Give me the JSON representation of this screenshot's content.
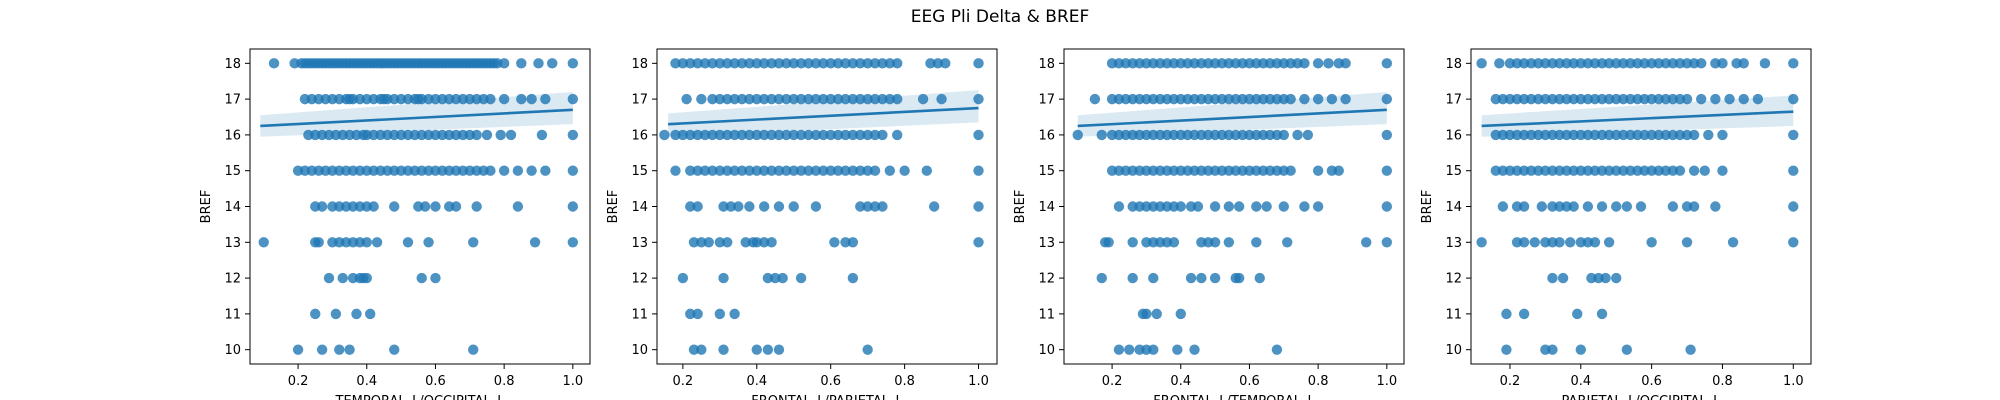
{
  "figure": {
    "title": "EEG Pli Delta & BREF"
  },
  "colors": {
    "point": "#1f77b4",
    "line": "#1f77b4",
    "ci": "#1f77b4"
  },
  "chart_data": [
    {
      "type": "scatter",
      "xlabel": "TEMPORAL_L/OCCIPITAL_L",
      "ylabel": "BREF",
      "xlim": [
        0.06,
        1.05
      ],
      "ylim": [
        9.6,
        18.4
      ],
      "xticks": [
        0.2,
        0.4,
        0.6,
        0.8,
        1.0
      ],
      "xtick_labels": [
        "0.2",
        "0.4",
        "0.6",
        "0.8",
        "1.0"
      ],
      "yticks": [
        10,
        11,
        12,
        13,
        14,
        15,
        16,
        17,
        18
      ],
      "ytick_labels": [
        "10",
        "11",
        "12",
        "13",
        "14",
        "15",
        "16",
        "17",
        "18"
      ],
      "regression": {
        "x": [
          0.09,
          1.0
        ],
        "y": [
          16.25,
          16.7
        ],
        "ci_lower": [
          15.95,
          16.3
        ],
        "ci_upper": [
          16.55,
          17.2
        ]
      },
      "points": {
        "18": [
          0.13,
          0.19,
          0.21,
          0.22,
          0.23,
          0.24,
          0.25,
          0.26,
          0.27,
          0.28,
          0.29,
          0.3,
          0.31,
          0.32,
          0.33,
          0.34,
          0.35,
          0.36,
          0.37,
          0.38,
          0.39,
          0.4,
          0.41,
          0.42,
          0.43,
          0.44,
          0.45,
          0.46,
          0.47,
          0.48,
          0.49,
          0.5,
          0.51,
          0.52,
          0.53,
          0.54,
          0.55,
          0.56,
          0.57,
          0.58,
          0.59,
          0.6,
          0.61,
          0.62,
          0.63,
          0.64,
          0.65,
          0.66,
          0.67,
          0.68,
          0.69,
          0.7,
          0.71,
          0.72,
          0.73,
          0.74,
          0.75,
          0.76,
          0.77,
          0.78,
          0.8,
          0.85,
          0.9,
          0.94,
          1.0
        ],
        "17": [
          0.22,
          0.24,
          0.26,
          0.28,
          0.3,
          0.32,
          0.34,
          0.35,
          0.36,
          0.38,
          0.4,
          0.42,
          0.44,
          0.45,
          0.46,
          0.48,
          0.5,
          0.52,
          0.54,
          0.55,
          0.56,
          0.58,
          0.6,
          0.62,
          0.64,
          0.66,
          0.68,
          0.7,
          0.72,
          0.74,
          0.76,
          0.8,
          0.85,
          0.88,
          0.92,
          1.0
        ],
        "16": [
          0.23,
          0.25,
          0.27,
          0.29,
          0.31,
          0.33,
          0.35,
          0.37,
          0.39,
          0.4,
          0.42,
          0.44,
          0.46,
          0.48,
          0.5,
          0.52,
          0.54,
          0.56,
          0.58,
          0.6,
          0.62,
          0.64,
          0.66,
          0.68,
          0.7,
          0.72,
          0.75,
          0.79,
          0.82,
          0.91,
          1.0
        ],
        "15": [
          0.2,
          0.22,
          0.24,
          0.26,
          0.28,
          0.3,
          0.32,
          0.34,
          0.36,
          0.38,
          0.4,
          0.42,
          0.44,
          0.46,
          0.48,
          0.5,
          0.52,
          0.54,
          0.56,
          0.58,
          0.6,
          0.62,
          0.64,
          0.66,
          0.68,
          0.7,
          0.72,
          0.74,
          0.76,
          0.8,
          0.84,
          0.88,
          0.92,
          1.0
        ],
        "14": [
          0.25,
          0.27,
          0.3,
          0.32,
          0.34,
          0.36,
          0.38,
          0.4,
          0.42,
          0.48,
          0.55,
          0.57,
          0.6,
          0.64,
          0.66,
          0.72,
          0.84,
          1.0
        ],
        "13": [
          0.1,
          0.25,
          0.26,
          0.3,
          0.32,
          0.34,
          0.36,
          0.38,
          0.4,
          0.43,
          0.52,
          0.58,
          0.71,
          0.89,
          1.0
        ],
        "12": [
          0.29,
          0.33,
          0.36,
          0.38,
          0.39,
          0.4,
          0.56,
          0.6
        ],
        "11": [
          0.25,
          0.31,
          0.37,
          0.41
        ],
        "10": [
          0.2,
          0.27,
          0.32,
          0.35,
          0.48,
          0.71
        ]
      }
    },
    {
      "type": "scatter",
      "xlabel": "FRONTAL_L/PARIETAL_L",
      "ylabel": "BREF",
      "xlim": [
        0.13,
        1.05
      ],
      "ylim": [
        9.6,
        18.4
      ],
      "xticks": [
        0.2,
        0.4,
        0.6,
        0.8,
        1.0
      ],
      "xtick_labels": [
        "0.2",
        "0.4",
        "0.6",
        "0.8",
        "1.0"
      ],
      "yticks": [
        10,
        11,
        12,
        13,
        14,
        15,
        16,
        17,
        18
      ],
      "ytick_labels": [
        "10",
        "11",
        "12",
        "13",
        "14",
        "15",
        "16",
        "17",
        "18"
      ],
      "regression": {
        "x": [
          0.16,
          1.0
        ],
        "y": [
          16.3,
          16.75
        ],
        "ci_lower": [
          15.95,
          16.35
        ],
        "ci_upper": [
          16.6,
          17.25
        ]
      },
      "points": {
        "18": [
          0.18,
          0.2,
          0.22,
          0.24,
          0.26,
          0.28,
          0.3,
          0.32,
          0.34,
          0.36,
          0.38,
          0.4,
          0.42,
          0.44,
          0.46,
          0.48,
          0.5,
          0.52,
          0.54,
          0.56,
          0.58,
          0.6,
          0.62,
          0.64,
          0.66,
          0.68,
          0.7,
          0.72,
          0.74,
          0.76,
          0.78,
          0.87,
          0.89,
          0.91,
          1.0
        ],
        "17": [
          0.21,
          0.25,
          0.28,
          0.3,
          0.32,
          0.34,
          0.36,
          0.38,
          0.4,
          0.42,
          0.44,
          0.46,
          0.48,
          0.5,
          0.52,
          0.54,
          0.56,
          0.58,
          0.6,
          0.62,
          0.64,
          0.66,
          0.68,
          0.7,
          0.72,
          0.74,
          0.76,
          0.78,
          0.85,
          0.9,
          1.0
        ],
        "16": [
          0.15,
          0.18,
          0.2,
          0.22,
          0.24,
          0.26,
          0.28,
          0.3,
          0.32,
          0.34,
          0.36,
          0.38,
          0.4,
          0.42,
          0.44,
          0.46,
          0.48,
          0.5,
          0.52,
          0.54,
          0.56,
          0.58,
          0.6,
          0.62,
          0.64,
          0.66,
          0.68,
          0.7,
          0.72,
          0.74,
          0.78,
          1.0
        ],
        "15": [
          0.18,
          0.22,
          0.24,
          0.26,
          0.28,
          0.3,
          0.32,
          0.34,
          0.36,
          0.38,
          0.4,
          0.42,
          0.44,
          0.46,
          0.48,
          0.5,
          0.52,
          0.54,
          0.56,
          0.58,
          0.6,
          0.62,
          0.64,
          0.66,
          0.68,
          0.7,
          0.72,
          0.76,
          0.8,
          0.86,
          1.0
        ],
        "14": [
          0.22,
          0.24,
          0.31,
          0.33,
          0.35,
          0.38,
          0.42,
          0.46,
          0.5,
          0.56,
          0.68,
          0.7,
          0.72,
          0.74,
          0.88,
          1.0
        ],
        "13": [
          0.23,
          0.25,
          0.27,
          0.3,
          0.32,
          0.37,
          0.39,
          0.4,
          0.42,
          0.44,
          0.61,
          0.64,
          0.66,
          1.0
        ],
        "12": [
          0.2,
          0.31,
          0.43,
          0.45,
          0.47,
          0.52,
          0.66
        ],
        "11": [
          0.22,
          0.24,
          0.3,
          0.34
        ],
        "10": [
          0.23,
          0.25,
          0.31,
          0.4,
          0.43,
          0.46,
          0.7
        ]
      }
    },
    {
      "type": "scatter",
      "xlabel": "FRONTAL_L/TEMPORAL_L",
      "ylabel": "BREF",
      "xlim": [
        0.06,
        1.05
      ],
      "ylim": [
        9.6,
        18.4
      ],
      "xticks": [
        0.2,
        0.4,
        0.6,
        0.8,
        1.0
      ],
      "xtick_labels": [
        "0.2",
        "0.4",
        "0.6",
        "0.8",
        "1.0"
      ],
      "yticks": [
        10,
        11,
        12,
        13,
        14,
        15,
        16,
        17,
        18
      ],
      "ytick_labels": [
        "10",
        "11",
        "12",
        "13",
        "14",
        "15",
        "16",
        "17",
        "18"
      ],
      "regression": {
        "x": [
          0.1,
          1.0
        ],
        "y": [
          16.25,
          16.7
        ],
        "ci_lower": [
          15.95,
          16.3
        ],
        "ci_upper": [
          16.55,
          17.2
        ]
      },
      "points": {
        "18": [
          0.2,
          0.22,
          0.24,
          0.26,
          0.28,
          0.3,
          0.32,
          0.34,
          0.36,
          0.38,
          0.4,
          0.42,
          0.44,
          0.46,
          0.48,
          0.5,
          0.52,
          0.54,
          0.56,
          0.58,
          0.6,
          0.62,
          0.64,
          0.66,
          0.68,
          0.7,
          0.72,
          0.74,
          0.76,
          0.8,
          0.83,
          0.86,
          0.88,
          1.0
        ],
        "17": [
          0.15,
          0.2,
          0.22,
          0.24,
          0.26,
          0.28,
          0.3,
          0.32,
          0.34,
          0.36,
          0.38,
          0.4,
          0.42,
          0.44,
          0.46,
          0.48,
          0.5,
          0.52,
          0.54,
          0.56,
          0.58,
          0.6,
          0.62,
          0.64,
          0.66,
          0.68,
          0.7,
          0.72,
          0.76,
          0.8,
          0.84,
          0.88,
          1.0
        ],
        "16": [
          0.1,
          0.17,
          0.2,
          0.22,
          0.24,
          0.26,
          0.28,
          0.3,
          0.32,
          0.34,
          0.36,
          0.38,
          0.4,
          0.42,
          0.44,
          0.46,
          0.48,
          0.5,
          0.52,
          0.54,
          0.56,
          0.58,
          0.6,
          0.62,
          0.64,
          0.66,
          0.68,
          0.7,
          0.74,
          0.77,
          1.0
        ],
        "15": [
          0.2,
          0.22,
          0.24,
          0.26,
          0.28,
          0.3,
          0.32,
          0.34,
          0.36,
          0.38,
          0.4,
          0.42,
          0.44,
          0.46,
          0.48,
          0.5,
          0.52,
          0.54,
          0.56,
          0.58,
          0.6,
          0.62,
          0.64,
          0.66,
          0.68,
          0.7,
          0.72,
          0.8,
          0.84,
          0.86,
          1.0
        ],
        "14": [
          0.22,
          0.26,
          0.28,
          0.3,
          0.32,
          0.34,
          0.36,
          0.38,
          0.4,
          0.43,
          0.45,
          0.5,
          0.54,
          0.57,
          0.62,
          0.65,
          0.7,
          0.76,
          0.8,
          1.0
        ],
        "13": [
          0.18,
          0.19,
          0.26,
          0.3,
          0.32,
          0.34,
          0.36,
          0.38,
          0.46,
          0.48,
          0.5,
          0.54,
          0.62,
          0.71,
          0.94,
          1.0
        ],
        "12": [
          0.17,
          0.26,
          0.32,
          0.43,
          0.46,
          0.5,
          0.56,
          0.57,
          0.63
        ],
        "11": [
          0.29,
          0.3,
          0.33,
          0.4
        ],
        "10": [
          0.22,
          0.25,
          0.28,
          0.3,
          0.32,
          0.39,
          0.44,
          0.68
        ]
      }
    },
    {
      "type": "scatter",
      "xlabel": "PARIETAL_L/OCCIPITAL_L",
      "ylabel": "BREF",
      "xlim": [
        0.09,
        1.05
      ],
      "ylim": [
        9.6,
        18.4
      ],
      "xticks": [
        0.2,
        0.4,
        0.6,
        0.8,
        1.0
      ],
      "xtick_labels": [
        "0.2",
        "0.4",
        "0.6",
        "0.8",
        "1.0"
      ],
      "yticks": [
        10,
        11,
        12,
        13,
        14,
        15,
        16,
        17,
        18
      ],
      "ytick_labels": [
        "10",
        "11",
        "12",
        "13",
        "14",
        "15",
        "16",
        "17",
        "18"
      ],
      "regression": {
        "x": [
          0.12,
          1.0
        ],
        "y": [
          16.25,
          16.65
        ],
        "ci_lower": [
          15.95,
          16.25
        ],
        "ci_upper": [
          16.55,
          17.1
        ]
      },
      "points": {
        "18": [
          0.12,
          0.17,
          0.2,
          0.22,
          0.24,
          0.26,
          0.28,
          0.3,
          0.32,
          0.34,
          0.36,
          0.38,
          0.4,
          0.42,
          0.44,
          0.46,
          0.48,
          0.5,
          0.52,
          0.54,
          0.56,
          0.58,
          0.6,
          0.62,
          0.64,
          0.66,
          0.68,
          0.7,
          0.72,
          0.74,
          0.78,
          0.8,
          0.84,
          0.86,
          0.92,
          1.0
        ],
        "17": [
          0.16,
          0.18,
          0.2,
          0.22,
          0.24,
          0.26,
          0.28,
          0.3,
          0.32,
          0.34,
          0.36,
          0.38,
          0.4,
          0.42,
          0.44,
          0.46,
          0.48,
          0.5,
          0.52,
          0.54,
          0.56,
          0.58,
          0.6,
          0.62,
          0.64,
          0.66,
          0.68,
          0.7,
          0.74,
          0.78,
          0.82,
          0.86,
          0.9,
          1.0
        ],
        "16": [
          0.16,
          0.18,
          0.2,
          0.22,
          0.24,
          0.26,
          0.28,
          0.3,
          0.32,
          0.34,
          0.36,
          0.38,
          0.4,
          0.42,
          0.44,
          0.46,
          0.48,
          0.5,
          0.52,
          0.54,
          0.56,
          0.58,
          0.6,
          0.62,
          0.64,
          0.66,
          0.68,
          0.7,
          0.72,
          0.76,
          0.8,
          1.0
        ],
        "15": [
          0.16,
          0.18,
          0.2,
          0.22,
          0.24,
          0.26,
          0.28,
          0.3,
          0.32,
          0.34,
          0.36,
          0.38,
          0.4,
          0.42,
          0.44,
          0.46,
          0.48,
          0.5,
          0.52,
          0.54,
          0.56,
          0.58,
          0.6,
          0.62,
          0.64,
          0.66,
          0.68,
          0.72,
          0.75,
          0.8,
          1.0
        ],
        "14": [
          0.18,
          0.22,
          0.24,
          0.29,
          0.32,
          0.34,
          0.36,
          0.38,
          0.42,
          0.46,
          0.5,
          0.53,
          0.57,
          0.66,
          0.7,
          0.72,
          0.78,
          1.0
        ],
        "13": [
          0.12,
          0.22,
          0.24,
          0.27,
          0.3,
          0.32,
          0.34,
          0.37,
          0.4,
          0.42,
          0.44,
          0.48,
          0.6,
          0.7,
          0.83,
          1.0
        ],
        "12": [
          0.32,
          0.35,
          0.43,
          0.45,
          0.47,
          0.5
        ],
        "11": [
          0.19,
          0.24,
          0.39,
          0.46
        ],
        "10": [
          0.19,
          0.3,
          0.32,
          0.4,
          0.53,
          0.71
        ]
      }
    }
  ]
}
